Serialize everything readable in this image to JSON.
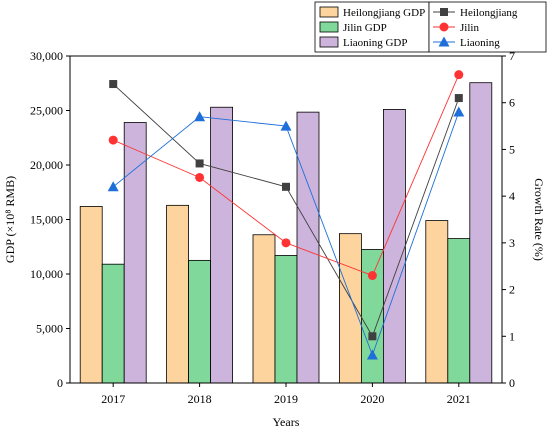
{
  "chart_data": {
    "type": "bar+line",
    "categories": [
      "2017",
      "2018",
      "2019",
      "2020",
      "2021"
    ],
    "xlabel": "Years",
    "ylabel_left": "GDP (×10⁸ RMB)",
    "ylabel_right": "Growth Rate (%)",
    "ylim_left": [
      0,
      30000
    ],
    "yticks_left": [
      "0",
      "5,000",
      "10,000",
      "15,000",
      "20,000",
      "25,000",
      "30,000"
    ],
    "ylim_right": [
      0,
      7
    ],
    "yticks_right": [
      "0",
      "1",
      "2",
      "3",
      "4",
      "5",
      "6",
      "7"
    ],
    "bar_series": [
      {
        "name": "Heilongjiang GDP",
        "color": "#FDD49E",
        "values": [
          16200,
          16300,
          13600,
          13700,
          14900
        ]
      },
      {
        "name": "Jilin GDP",
        "color": "#80D89A",
        "values": [
          10900,
          11250,
          11700,
          12250,
          13250
        ]
      },
      {
        "name": "Liaoning GDP",
        "color": "#CDB4DC",
        "values": [
          23900,
          25300,
          24850,
          25100,
          27550
        ]
      }
    ],
    "line_series": [
      {
        "name": "Heilongjiang",
        "color": "#404040",
        "marker": "square",
        "values": [
          6.4,
          4.7,
          4.2,
          1.0,
          6.1
        ]
      },
      {
        "name": "Jilin",
        "color": "#FF3333",
        "marker": "circle",
        "values": [
          5.2,
          4.4,
          3.0,
          2.3,
          6.6
        ]
      },
      {
        "name": "Liaoning",
        "color": "#1E6FD9",
        "marker": "triangle",
        "values": [
          4.2,
          5.7,
          5.5,
          0.6,
          5.8
        ]
      }
    ]
  }
}
